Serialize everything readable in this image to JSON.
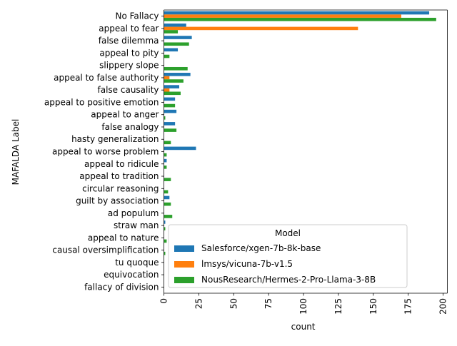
{
  "chart_data": {
    "type": "bar",
    "orientation": "horizontal",
    "xlabel": "count",
    "ylabel": "MAFALDA Label",
    "xlim": [
      0,
      203
    ],
    "xticks": [
      0,
      25,
      50,
      75,
      100,
      125,
      150,
      175,
      200
    ],
    "grid": false,
    "categories": [
      "No Fallacy",
      "appeal to fear",
      "false dilemma",
      "appeal to pity",
      "slippery slope",
      "appeal to false authority",
      "false causality",
      "appeal to positive emotion",
      "appeal to anger",
      "false analogy",
      "hasty generalization",
      "appeal to worse problem",
      "appeal to ridicule",
      "appeal to tradition",
      "circular reasoning",
      "guilt by association",
      "ad populum",
      "straw man",
      "appeal to nature",
      "causal oversimplification",
      "tu quoque",
      "equivocation",
      "fallacy of division"
    ],
    "series": [
      {
        "name": "Salesforce/xgen-7b-8k-base",
        "color": "#1f77b4",
        "values": [
          190,
          16,
          20,
          10,
          0,
          19,
          11,
          8,
          9,
          8,
          0,
          23,
          2,
          0,
          0,
          4,
          0,
          1,
          0,
          0,
          0,
          0,
          0
        ]
      },
      {
        "name": "lmsys/vicuna-7b-v1.5",
        "color": "#ff7f0e",
        "values": [
          170,
          139,
          0,
          0,
          0,
          4,
          4,
          0,
          0,
          0,
          0,
          0,
          0,
          0,
          0,
          0,
          0,
          0,
          0,
          0,
          0,
          0,
          0
        ]
      },
      {
        "name": "NousResearch/Hermes-2-Pro-Llama-3-8B",
        "color": "#2ca02c",
        "values": [
          195,
          10,
          18,
          4,
          17,
          14,
          12,
          8,
          1,
          9,
          5,
          2,
          2,
          5,
          3,
          5,
          6,
          1,
          2,
          1,
          0,
          0,
          0
        ]
      }
    ],
    "legend": {
      "title": "Model",
      "placement": "lower-right"
    }
  }
}
